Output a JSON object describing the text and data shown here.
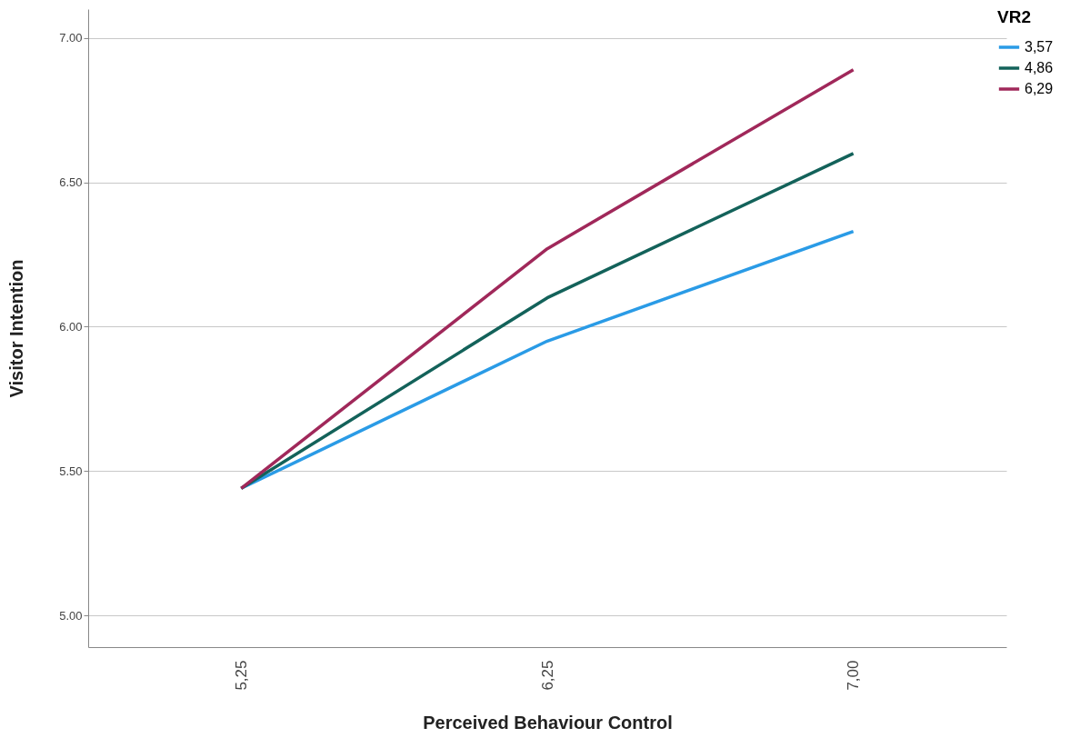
{
  "chart_data": {
    "type": "line",
    "xlabel": "Perceived Behaviour Control",
    "ylabel": "Visitor Intention",
    "legend_title": "VR2",
    "categories": [
      "5,25",
      "6,25",
      "7,00"
    ],
    "series": [
      {
        "name": "3,57",
        "color": "#2a9be6",
        "values": [
          5.44,
          5.95,
          6.33
        ]
      },
      {
        "name": "4,86",
        "color": "#13625a",
        "values": [
          5.44,
          6.1,
          6.6
        ]
      },
      {
        "name": "6,29",
        "color": "#a0285a",
        "values": [
          5.44,
          6.27,
          6.89
        ]
      }
    ],
    "ylim": [
      4.89,
      7.1
    ],
    "yticks": [
      {
        "value": 5,
        "label": "5.00"
      },
      {
        "value": 5.5,
        "label": "5.50"
      },
      {
        "value": 6,
        "label": "6.00"
      },
      {
        "value": 6.5,
        "label": "6.50"
      },
      {
        "value": 7,
        "label": "7.00"
      }
    ],
    "grid": "y",
    "legend": "top right"
  }
}
